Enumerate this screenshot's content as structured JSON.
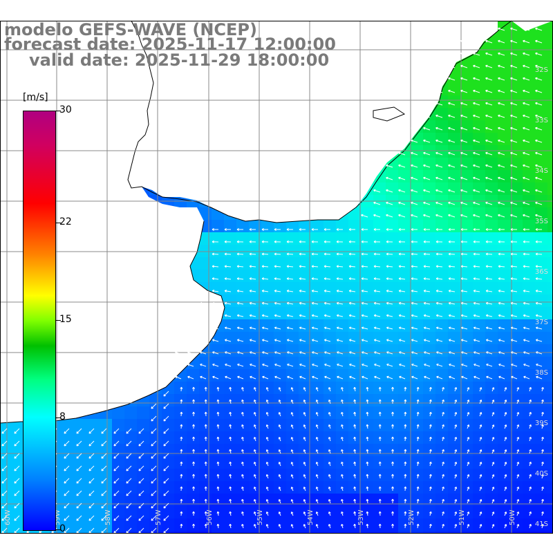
{
  "header": {
    "model_line": "modelo GEFS-WAVE (NCEP)",
    "forecast_line": "forecast date: 2025-11-17 12:00:00",
    "valid_line": "valid date: 2025-11-29 18:00:00"
  },
  "colorbar": {
    "unit": "[m/s]",
    "ticks": [
      {
        "label": "30",
        "value": 30
      },
      {
        "label": "22",
        "value": 22
      },
      {
        "label": "15",
        "value": 15
      },
      {
        "label": "8",
        "value": 8
      },
      {
        "label": "0",
        "value": 0
      }
    ],
    "colors": [
      "#0000ff",
      "#0080ff",
      "#00ffff",
      "#00ff80",
      "#00c000",
      "#80ff00",
      "#ffff00",
      "#ff8000",
      "#ff0000",
      "#b00080"
    ]
  },
  "map": {
    "lat_labels": [
      "32S",
      "33S",
      "34S",
      "35S",
      "36S",
      "37S",
      "38S",
      "39S",
      "40S",
      "41S"
    ],
    "lon_labels": [
      "60W",
      "59W",
      "58W",
      "57W",
      "56W",
      "55W",
      "54W",
      "53W",
      "52W",
      "51W",
      "50W"
    ],
    "land_color": "#ffffff",
    "grid_color": "#888888"
  }
}
